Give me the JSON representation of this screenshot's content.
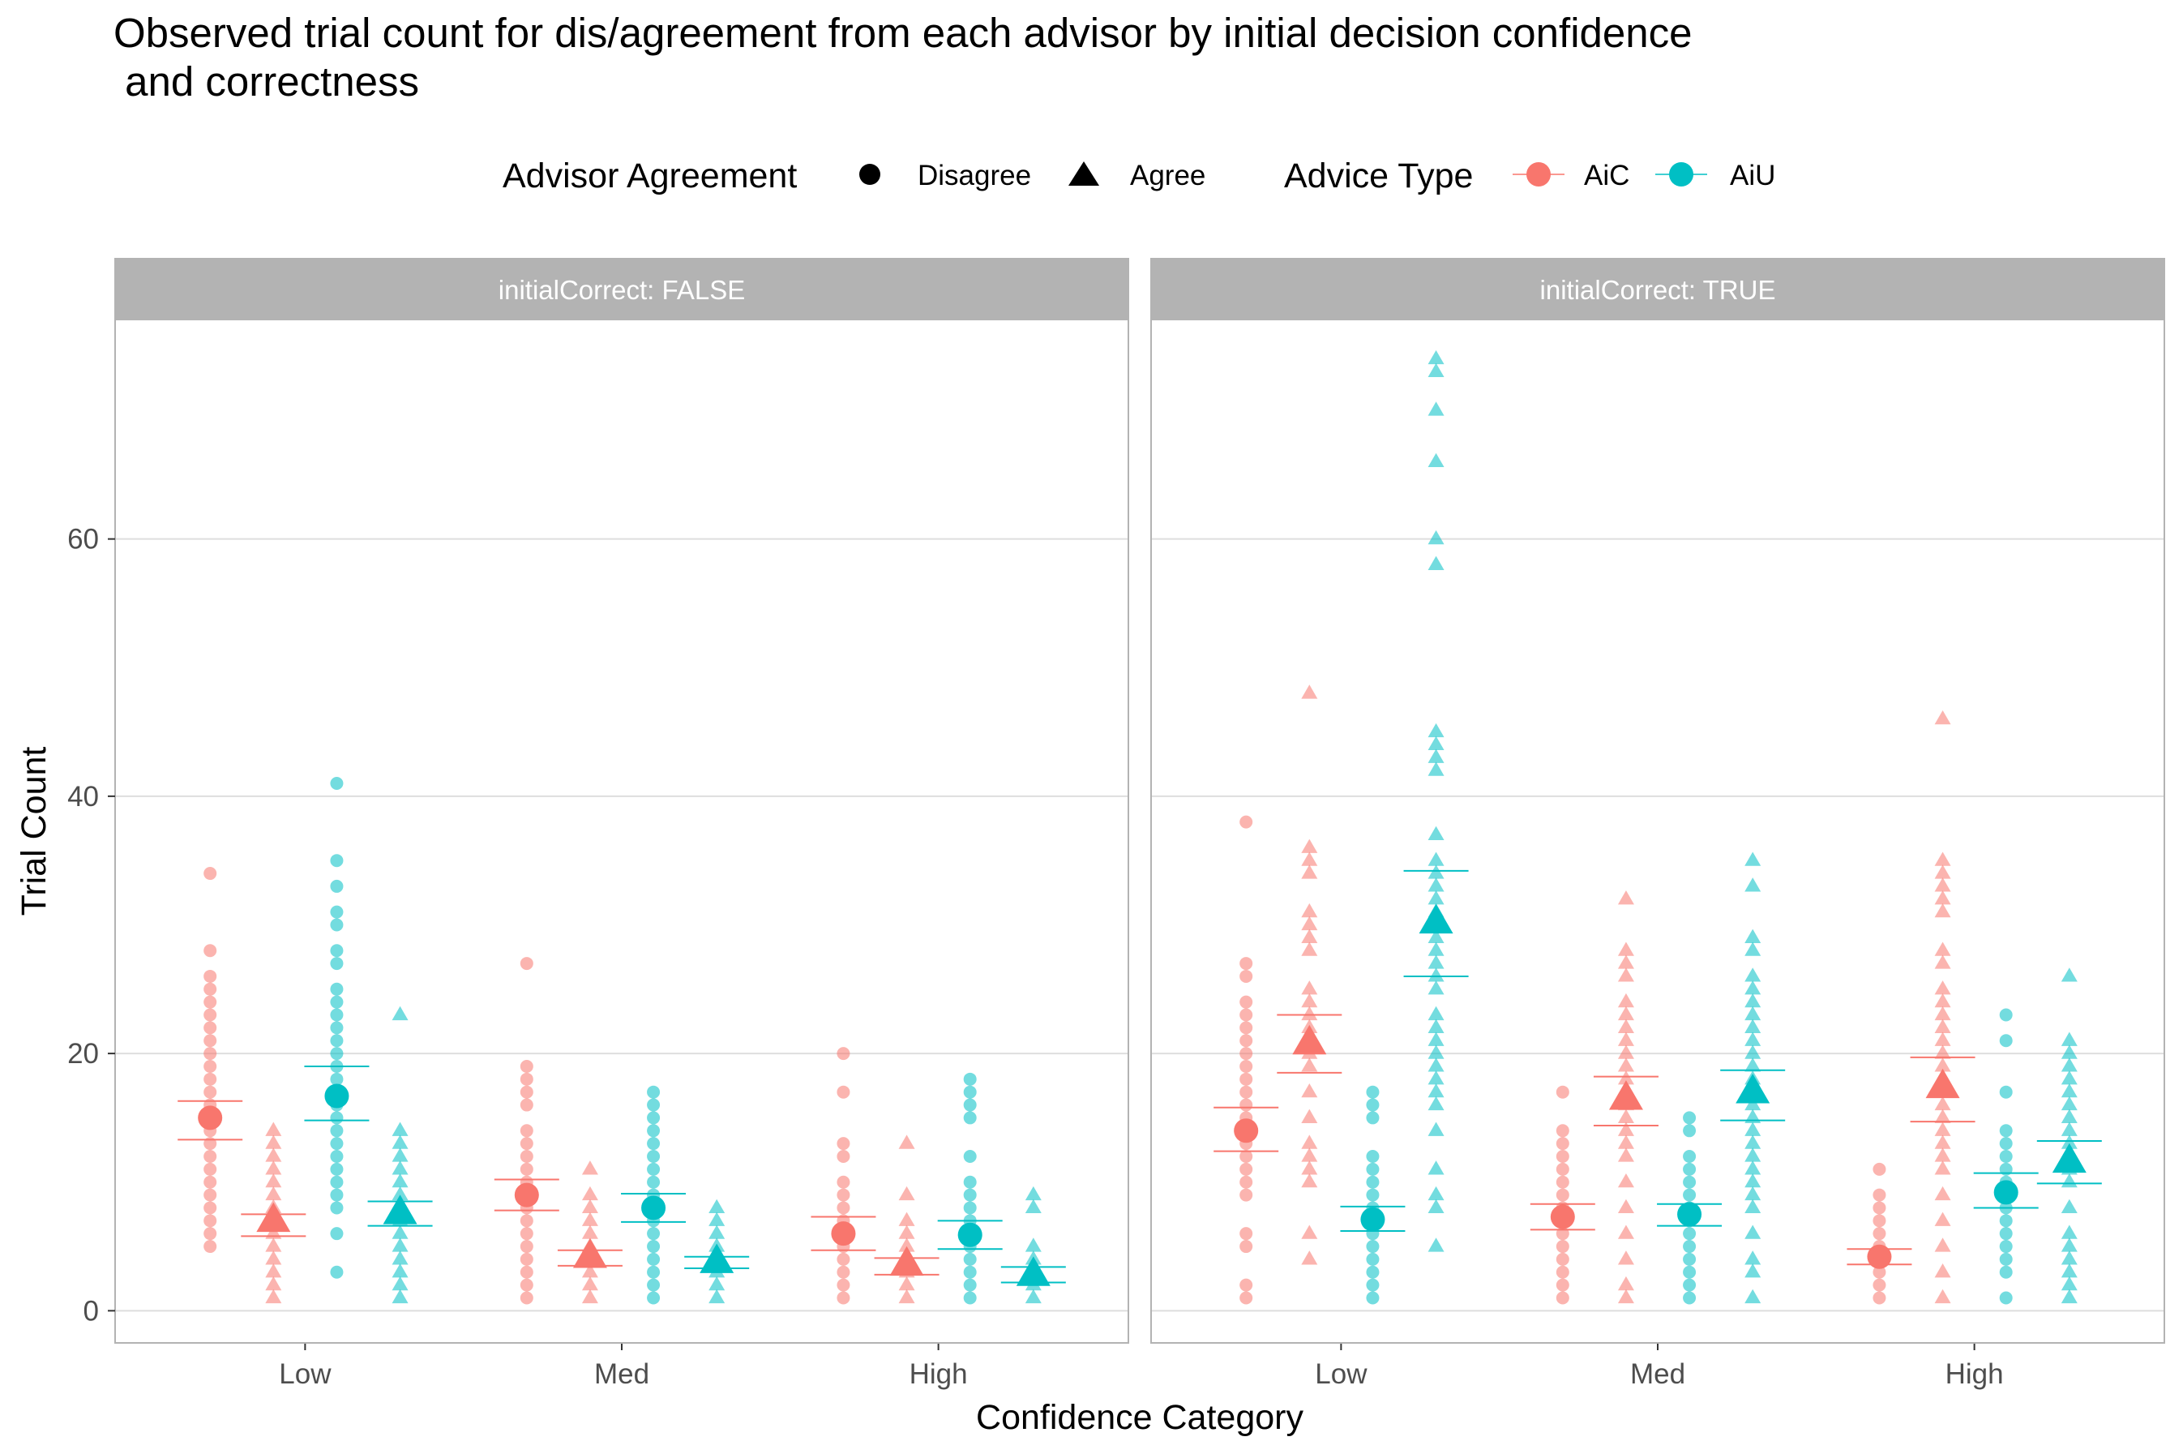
{
  "chart_data": {
    "type": "scatter",
    "title_line1": "Observed trial count for dis/agreement from each advisor by initial decision confidence",
    "title_line2": " and correctness",
    "xlabel": "Confidence Category",
    "ylabel": "Trial Count",
    "ylim": [
      -2.5,
      77
    ],
    "yticks": [
      0,
      20,
      40,
      60
    ],
    "grid": true,
    "legend_position": "top",
    "categories": [
      "Low",
      "Med",
      "High"
    ],
    "facet_variable": "initialCorrect",
    "facets": [
      "initialCorrect: FALSE",
      "initialCorrect: TRUE"
    ],
    "legends": {
      "agreement": {
        "title": "Advisor Agreement",
        "items": [
          {
            "label": "Disagree",
            "shape": "circle"
          },
          {
            "label": "Agree",
            "shape": "triangle"
          }
        ]
      },
      "advice_type": {
        "title": "Advice Type",
        "items": [
          {
            "label": "AiC",
            "color": "#F8766D"
          },
          {
            "label": "AiU",
            "color": "#00BFC4"
          }
        ]
      }
    },
    "colors": {
      "AiC": "#F8766D",
      "AiU": "#00BFC4",
      "strip": "#b3b3b3",
      "grid": "#dedede",
      "border": "#b3b3b3"
    },
    "series": [
      {
        "facet": 0,
        "category": "Low",
        "advisor": "AiC",
        "agreement": "Disagree",
        "mean": 15.0,
        "ci": [
          13.3,
          16.3
        ],
        "values": [
          5,
          6,
          7,
          8,
          9,
          10,
          11,
          12,
          13,
          14,
          15,
          16,
          17,
          18,
          19,
          20,
          21,
          22,
          23,
          24,
          25,
          26,
          28,
          34
        ]
      },
      {
        "facet": 0,
        "category": "Low",
        "advisor": "AiC",
        "agreement": "Agree",
        "mean": 7.0,
        "ci": [
          5.8,
          7.5
        ],
        "values": [
          1,
          2,
          3,
          4,
          5,
          6,
          7,
          8,
          9,
          10,
          11,
          12,
          13,
          14
        ]
      },
      {
        "facet": 0,
        "category": "Low",
        "advisor": "AiU",
        "agreement": "Disagree",
        "mean": 16.7,
        "ci": [
          14.8,
          19.0
        ],
        "values": [
          3,
          6,
          8,
          9,
          10,
          11,
          12,
          13,
          14,
          15,
          16,
          17,
          18,
          19,
          20,
          21,
          22,
          23,
          24,
          25,
          27,
          28,
          30,
          31,
          33,
          35,
          41
        ]
      },
      {
        "facet": 0,
        "category": "Low",
        "advisor": "AiU",
        "agreement": "Agree",
        "mean": 7.6,
        "ci": [
          6.6,
          8.5
        ],
        "values": [
          1,
          2,
          3,
          4,
          5,
          6,
          7,
          8,
          9,
          10,
          11,
          12,
          13,
          14,
          23
        ]
      },
      {
        "facet": 0,
        "category": "Med",
        "advisor": "AiC",
        "agreement": "Disagree",
        "mean": 9.0,
        "ci": [
          7.8,
          10.2
        ],
        "values": [
          1,
          2,
          3,
          4,
          5,
          6,
          7,
          8,
          9,
          10,
          11,
          12,
          13,
          14,
          16,
          17,
          18,
          19,
          27
        ]
      },
      {
        "facet": 0,
        "category": "Med",
        "advisor": "AiC",
        "agreement": "Agree",
        "mean": 4.2,
        "ci": [
          3.5,
          4.7
        ],
        "values": [
          1,
          2,
          3,
          4,
          5,
          6,
          7,
          8,
          9,
          11
        ]
      },
      {
        "facet": 0,
        "category": "Med",
        "advisor": "AiU",
        "agreement": "Disagree",
        "mean": 8.0,
        "ci": [
          6.9,
          9.1
        ],
        "values": [
          1,
          2,
          3,
          4,
          5,
          6,
          7,
          8,
          9,
          10,
          11,
          12,
          13,
          14,
          15,
          16,
          17
        ]
      },
      {
        "facet": 0,
        "category": "Med",
        "advisor": "AiU",
        "agreement": "Agree",
        "mean": 3.8,
        "ci": [
          3.3,
          4.2
        ],
        "values": [
          1,
          2,
          3,
          4,
          5,
          6,
          7,
          8
        ]
      },
      {
        "facet": 0,
        "category": "High",
        "advisor": "AiC",
        "agreement": "Disagree",
        "mean": 6.0,
        "ci": [
          4.7,
          7.3
        ],
        "values": [
          1,
          2,
          3,
          4,
          5,
          6,
          7,
          8,
          9,
          10,
          12,
          13,
          17,
          20
        ]
      },
      {
        "facet": 0,
        "category": "High",
        "advisor": "AiC",
        "agreement": "Agree",
        "mean": 3.6,
        "ci": [
          2.8,
          4.1
        ],
        "values": [
          1,
          2,
          3,
          4,
          5,
          6,
          7,
          9,
          13
        ]
      },
      {
        "facet": 0,
        "category": "High",
        "advisor": "AiU",
        "agreement": "Disagree",
        "mean": 5.9,
        "ci": [
          4.8,
          7.0
        ],
        "values": [
          1,
          2,
          3,
          4,
          5,
          6,
          7,
          8,
          9,
          10,
          12,
          15,
          16,
          17,
          18
        ]
      },
      {
        "facet": 0,
        "category": "High",
        "advisor": "AiU",
        "agreement": "Agree",
        "mean": 2.8,
        "ci": [
          2.2,
          3.4
        ],
        "values": [
          1,
          2,
          3,
          4,
          5,
          8,
          9
        ]
      },
      {
        "facet": 1,
        "category": "Low",
        "advisor": "AiC",
        "agreement": "Disagree",
        "mean": 14.0,
        "ci": [
          12.4,
          15.8
        ],
        "values": [
          1,
          2,
          5,
          6,
          9,
          10,
          11,
          12,
          13,
          14,
          15,
          16,
          17,
          18,
          19,
          20,
          21,
          22,
          23,
          24,
          26,
          27,
          38
        ]
      },
      {
        "facet": 1,
        "category": "Low",
        "advisor": "AiC",
        "agreement": "Agree",
        "mean": 20.8,
        "ci": [
          18.5,
          23.0
        ],
        "values": [
          4,
          6,
          10,
          11,
          12,
          13,
          15,
          17,
          19,
          20,
          21,
          22,
          23,
          24,
          25,
          28,
          29,
          30,
          31,
          34,
          35,
          36,
          48
        ]
      },
      {
        "facet": 1,
        "category": "Low",
        "advisor": "AiU",
        "agreement": "Disagree",
        "mean": 7.1,
        "ci": [
          6.2,
          8.1
        ],
        "values": [
          1,
          2,
          3,
          4,
          5,
          6,
          7,
          8,
          9,
          10,
          11,
          12,
          15,
          16,
          17
        ]
      },
      {
        "facet": 1,
        "category": "Low",
        "advisor": "AiU",
        "agreement": "Agree",
        "mean": 30.2,
        "ci": [
          26.0,
          34.2
        ],
        "values": [
          5,
          8,
          9,
          11,
          14,
          16,
          17,
          18,
          19,
          20,
          21,
          22,
          23,
          25,
          26,
          27,
          28,
          29,
          30,
          31,
          32,
          33,
          34,
          35,
          37,
          42,
          43,
          44,
          45,
          58,
          60,
          66,
          70,
          73,
          74
        ]
      },
      {
        "facet": 1,
        "category": "Med",
        "advisor": "AiC",
        "agreement": "Disagree",
        "mean": 7.3,
        "ci": [
          6.3,
          8.3
        ],
        "values": [
          1,
          2,
          3,
          4,
          5,
          6,
          7,
          8,
          9,
          10,
          11,
          12,
          13,
          14,
          17
        ]
      },
      {
        "facet": 1,
        "category": "Med",
        "advisor": "AiC",
        "agreement": "Agree",
        "mean": 16.5,
        "ci": [
          14.4,
          18.2
        ],
        "values": [
          1,
          2,
          4,
          6,
          8,
          10,
          12,
          13,
          14,
          15,
          16,
          17,
          18,
          19,
          20,
          21,
          22,
          23,
          24,
          26,
          27,
          28,
          32
        ]
      },
      {
        "facet": 1,
        "category": "Med",
        "advisor": "AiU",
        "agreement": "Disagree",
        "mean": 7.5,
        "ci": [
          6.6,
          8.3
        ],
        "values": [
          1,
          2,
          3,
          4,
          5,
          6,
          7,
          8,
          9,
          10,
          11,
          12,
          14,
          15
        ]
      },
      {
        "facet": 1,
        "category": "Med",
        "advisor": "AiU",
        "agreement": "Agree",
        "mean": 17.0,
        "ci": [
          14.8,
          18.7
        ],
        "values": [
          1,
          3,
          4,
          6,
          8,
          9,
          10,
          11,
          12,
          13,
          14,
          15,
          16,
          17,
          18,
          19,
          20,
          21,
          22,
          23,
          24,
          25,
          26,
          28,
          29,
          33,
          35
        ]
      },
      {
        "facet": 1,
        "category": "High",
        "advisor": "AiC",
        "agreement": "Disagree",
        "mean": 4.2,
        "ci": [
          3.6,
          4.8
        ],
        "values": [
          1,
          2,
          3,
          4,
          5,
          6,
          7,
          8,
          9,
          11
        ]
      },
      {
        "facet": 1,
        "category": "High",
        "advisor": "AiC",
        "agreement": "Agree",
        "mean": 17.4,
        "ci": [
          14.7,
          19.7
        ],
        "values": [
          1,
          3,
          5,
          7,
          9,
          11,
          12,
          13,
          14,
          15,
          16,
          17,
          18,
          19,
          20,
          21,
          22,
          23,
          24,
          25,
          27,
          28,
          31,
          32,
          33,
          34,
          35,
          46
        ]
      },
      {
        "facet": 1,
        "category": "High",
        "advisor": "AiU",
        "agreement": "Disagree",
        "mean": 9.2,
        "ci": [
          8.0,
          10.7
        ],
        "values": [
          1,
          3,
          4,
          5,
          6,
          7,
          8,
          9,
          10,
          11,
          12,
          13,
          14,
          17,
          21,
          23
        ]
      },
      {
        "facet": 1,
        "category": "High",
        "advisor": "AiU",
        "agreement": "Agree",
        "mean": 11.6,
        "ci": [
          9.9,
          13.2
        ],
        "values": [
          1,
          2,
          3,
          4,
          5,
          6,
          8,
          10,
          11,
          12,
          13,
          14,
          15,
          16,
          17,
          18,
          19,
          20,
          21,
          26
        ]
      }
    ]
  }
}
